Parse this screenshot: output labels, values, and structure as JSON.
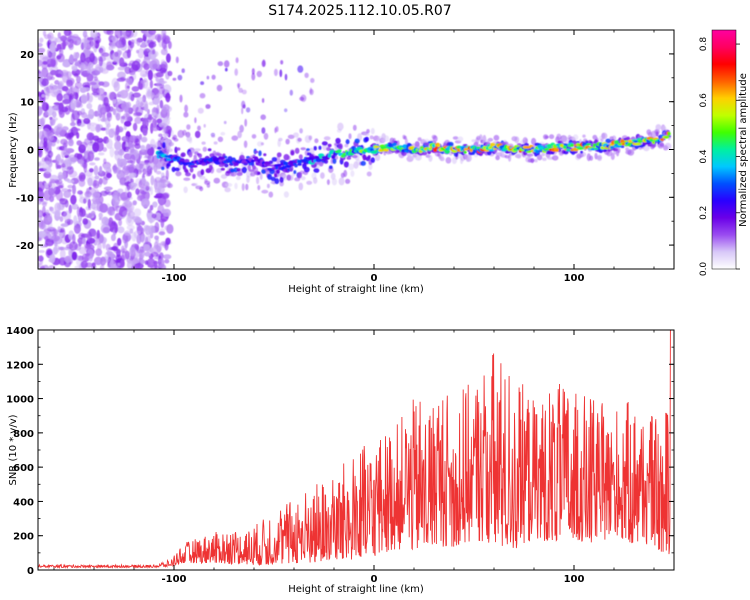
{
  "title": "S174.2025.112.10.05.R07",
  "chart_data": [
    {
      "type": "heatmap",
      "xlabel": "Height of straight line (km)",
      "ylabel": "Frequency (Hz)",
      "xlim": [
        -168,
        150
      ],
      "ylim": [
        -25,
        25
      ],
      "x_ticks": [
        -100,
        0,
        100
      ],
      "y_ticks": [
        -20,
        -10,
        0,
        10,
        20
      ],
      "colorbar": {
        "label": "Normalized spectral amplitude",
        "range": [
          0.0,
          0.85
        ],
        "ticks": [
          "0.0",
          "0.2",
          "0.4",
          "0.6",
          "0.8"
        ],
        "colors": [
          "#ffffff",
          "#d8c8f8",
          "#9a4cf0",
          "#6a00e8",
          "#2a00ff",
          "#0050ff",
          "#00c8ff",
          "#00f0a0",
          "#40ff00",
          "#c0ff00",
          "#ffd000",
          "#ff6000",
          "#ff0000",
          "#ff0060",
          "#ff00a0"
        ]
      },
      "ridge": {
        "x": [
          -108,
          -100,
          -90,
          -80,
          -70,
          -60,
          -50,
          -40,
          -30,
          -20,
          -10,
          0,
          10,
          20,
          30,
          40,
          50,
          60,
          70,
          80,
          90,
          100,
          110,
          120,
          130,
          140,
          148
        ],
        "freq": [
          -1,
          -2,
          -3,
          -2,
          -3,
          -2,
          -4,
          -3,
          -2,
          -1,
          -0.5,
          0,
          0.5,
          0,
          0.5,
          0,
          0,
          0.5,
          0,
          0,
          0.5,
          0.5,
          0.5,
          1,
          1.5,
          2,
          3
        ],
        "amplitude": [
          0.35,
          0.3,
          0.25,
          0.25,
          0.25,
          0.2,
          0.25,
          0.25,
          0.35,
          0.4,
          0.45,
          0.5,
          0.5,
          0.55,
          0.6,
          0.55,
          0.65,
          0.55,
          0.6,
          0.55,
          0.6,
          0.6,
          0.55,
          0.55,
          0.6,
          0.6,
          0.55
        ]
      },
      "noise_region_x": [
        -168,
        -108
      ]
    },
    {
      "type": "line",
      "xlabel": "Height of straight line (km)",
      "ylabel": "SNR (10 * v/v)",
      "xlim": [
        -168,
        150
      ],
      "ylim": [
        0,
        1400
      ],
      "x_ticks": [
        -100,
        0,
        100
      ],
      "y_ticks": [
        0,
        200,
        400,
        600,
        800,
        1000,
        1200,
        1400
      ],
      "color": "#ee3333",
      "envelope": {
        "x": [
          -168,
          -110,
          -102,
          -95,
          -80,
          -60,
          -50,
          -40,
          -30,
          -20,
          -10,
          0,
          10,
          20,
          30,
          40,
          50,
          60,
          70,
          80,
          90,
          100,
          110,
          120,
          130,
          140,
          145,
          149
        ],
        "min": [
          15,
          15,
          20,
          40,
          40,
          30,
          30,
          40,
          40,
          60,
          60,
          80,
          120,
          120,
          150,
          120,
          180,
          150,
          120,
          180,
          160,
          180,
          150,
          200,
          150,
          150,
          80,
          100
        ],
        "max": [
          30,
          30,
          60,
          160,
          220,
          260,
          350,
          420,
          500,
          560,
          700,
          750,
          850,
          1000,
          1050,
          1050,
          1100,
          1300,
          1150,
          1000,
          1100,
          1050,
          1000,
          950,
          1000,
          900,
          800,
          1400
        ]
      }
    }
  ]
}
